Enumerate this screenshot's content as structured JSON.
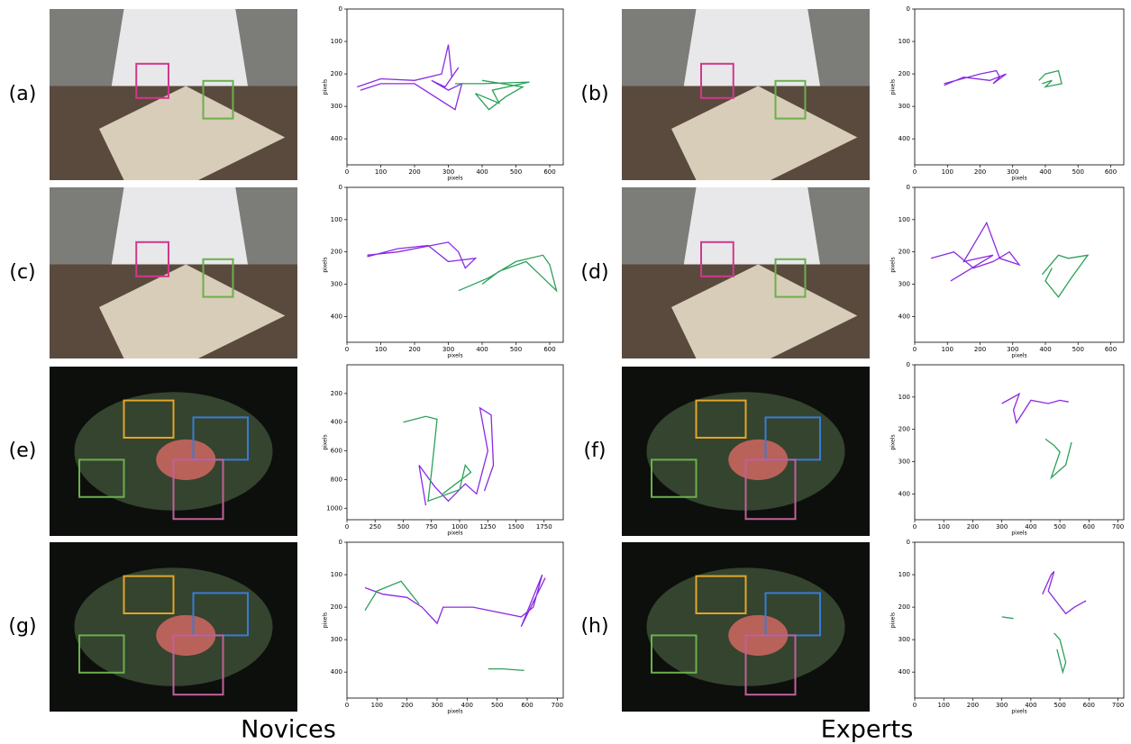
{
  "captions": {
    "left": "Novices",
    "right": "Experts"
  },
  "panels": [
    {
      "label": "(a)",
      "plot": {
        "type": "line",
        "xlabel": "pixels",
        "ylabel": "pixels",
        "xlim": [
          0,
          640
        ],
        "ylim": [
          480,
          0
        ],
        "xticks": [
          0,
          100,
          200,
          300,
          400,
          500,
          600
        ],
        "yticks": [
          0,
          100,
          200,
          300,
          400
        ],
        "series": [
          {
            "color": "#8a2be2",
            "x": [
              30,
              100,
              200,
              280,
              300,
              310,
              330,
              290,
              250,
              300,
              340,
              320,
              200,
              100,
              40
            ],
            "y": [
              240,
              215,
              220,
              200,
              110,
              210,
              180,
              240,
              220,
              250,
              230,
              310,
              230,
              230,
              250
            ]
          },
          {
            "color": "#2ca05a",
            "x": [
              320,
              400,
              540,
              430,
              450,
              380,
              420,
              470,
              520,
              400
            ],
            "y": [
              230,
              230,
              225,
              250,
              290,
              260,
              310,
              270,
              240,
              220
            ]
          }
        ]
      }
    },
    {
      "label": "(b)",
      "plot": {
        "type": "line",
        "xlabel": "pixels",
        "ylabel": "pixels",
        "xlim": [
          0,
          640
        ],
        "ylim": [
          480,
          0
        ],
        "xticks": [
          0,
          100,
          200,
          300,
          400,
          500,
          600
        ],
        "yticks": [
          0,
          100,
          200,
          300,
          400
        ],
        "series": [
          {
            "color": "#8a2be2",
            "x": [
              90,
              200,
              250,
              260,
              240,
              280,
              230,
              150,
              90
            ],
            "y": [
              230,
              200,
              190,
              210,
              230,
              200,
              220,
              210,
              235
            ]
          },
          {
            "color": "#2ca05a",
            "x": [
              380,
              400,
              440,
              450,
              400,
              420,
              390
            ],
            "y": [
              220,
              200,
              190,
              230,
              240,
              220,
              230
            ]
          }
        ]
      }
    },
    {
      "label": "(c)",
      "plot": {
        "type": "line",
        "xlabel": "pixels",
        "ylabel": "pixels",
        "xlim": [
          0,
          640
        ],
        "ylim": [
          480,
          0
        ],
        "xticks": [
          0,
          100,
          200,
          300,
          400,
          500,
          600
        ],
        "yticks": [
          0,
          100,
          200,
          300,
          400
        ],
        "series": [
          {
            "color": "#8a2be2",
            "x": [
              60,
              150,
              250,
              300,
              330,
              350,
              380,
              300,
              240,
              150,
              60
            ],
            "y": [
              210,
              200,
              180,
              170,
              200,
              250,
              220,
              230,
              180,
              190,
              215
            ]
          },
          {
            "color": "#2ca05a",
            "x": [
              330,
              420,
              500,
              580,
              600,
              620,
              580,
              530,
              450,
              400
            ],
            "y": [
              320,
              280,
              230,
              210,
              240,
              320,
              280,
              230,
              260,
              300
            ]
          }
        ]
      }
    },
    {
      "label": "(d)",
      "plot": {
        "type": "line",
        "xlabel": "pixels",
        "ylabel": "pixels",
        "xlim": [
          0,
          640
        ],
        "ylim": [
          480,
          0
        ],
        "xticks": [
          0,
          100,
          200,
          300,
          400,
          500,
          600
        ],
        "yticks": [
          0,
          100,
          200,
          300,
          400
        ],
        "series": [
          {
            "color": "#8a2be2",
            "x": [
              50,
              120,
              180,
              240,
              290,
              320,
              260,
              220,
              150,
              240,
              110
            ],
            "y": [
              220,
              200,
              250,
              230,
              200,
              240,
              220,
              110,
              230,
              210,
              290
            ]
          },
          {
            "color": "#2ca05a",
            "x": [
              390,
              440,
              470,
              530,
              480,
              440,
              400,
              420
            ],
            "y": [
              270,
              210,
              220,
              210,
              280,
              340,
              290,
              250
            ]
          }
        ]
      }
    },
    {
      "label": "(e)",
      "plot": {
        "type": "line",
        "xlabel": "pixels",
        "ylabel": "pixels",
        "xlim": [
          0,
          1920
        ],
        "ylim": [
          1080,
          0
        ],
        "xticks": [
          0,
          250,
          500,
          750,
          1000,
          1250,
          1500,
          1750
        ],
        "yticks": [
          200,
          400,
          600,
          800,
          1000
        ],
        "series": [
          {
            "color": "#8a2be2",
            "x": [
              700,
              640,
              780,
              900,
              1050,
              1150,
              1200,
              1250,
              1180,
              1280,
              1300,
              1220
            ],
            "y": [
              980,
              700,
              850,
              950,
              830,
              900,
              750,
              600,
              300,
              350,
              700,
              880
            ]
          },
          {
            "color": "#2ca05a",
            "x": [
              500,
              700,
              800,
              750,
              720,
              1000,
              1050,
              1100,
              850
            ],
            "y": [
              400,
              360,
              380,
              750,
              950,
              870,
              700,
              750,
              900
            ]
          }
        ]
      }
    },
    {
      "label": "(f)",
      "plot": {
        "type": "line",
        "xlabel": "pixels",
        "ylabel": "pixels",
        "xlim": [
          0,
          720
        ],
        "ylim": [
          480,
          0
        ],
        "xticks": [
          0,
          100,
          200,
          300,
          400,
          500,
          600,
          700
        ],
        "yticks": [
          0,
          100,
          200,
          300,
          400
        ],
        "series": [
          {
            "color": "#8a2be2",
            "x": [
              300,
              360,
              340,
              350,
              400,
              460,
              500,
              530
            ],
            "y": [
              120,
              90,
              140,
              180,
              110,
              120,
              110,
              115
            ]
          },
          {
            "color": "#2ca05a",
            "x": [
              450,
              480,
              500,
              470,
              520,
              540
            ],
            "y": [
              230,
              250,
              270,
              350,
              310,
              240
            ]
          }
        ]
      }
    },
    {
      "label": "(g)",
      "plot": {
        "type": "line",
        "xlabel": "pixels",
        "ylabel": "pixels",
        "xlim": [
          0,
          720
        ],
        "ylim": [
          480,
          0
        ],
        "xticks": [
          0,
          100,
          200,
          300,
          400,
          500,
          600,
          700
        ],
        "yticks": [
          0,
          100,
          200,
          300,
          400
        ],
        "series": [
          {
            "color": "#8a2be2",
            "x": [
              60,
              120,
              200,
              250,
              300,
              320,
              420,
              580,
              620,
              650,
              580,
              660
            ],
            "y": [
              140,
              160,
              170,
              200,
              250,
              200,
              200,
              230,
              200,
              100,
              260,
              110
            ]
          },
          {
            "color": "#2ca05a",
            "x": [
              60,
              100,
              180,
              240,
              null,
              470,
              520,
              590
            ],
            "y": [
              210,
              150,
              120,
              190,
              null,
              390,
              390,
              395
            ]
          }
        ]
      }
    },
    {
      "label": "(h)",
      "plot": {
        "type": "line",
        "xlabel": "pixels",
        "ylabel": "pixels",
        "xlim": [
          0,
          720
        ],
        "ylim": [
          480,
          0
        ],
        "xticks": [
          0,
          100,
          200,
          300,
          400,
          500,
          600,
          700
        ],
        "yticks": [
          0,
          100,
          200,
          300,
          400
        ],
        "series": [
          {
            "color": "#8a2be2",
            "x": [
              440,
              470,
              480,
              460,
              520,
              550,
              590
            ],
            "y": [
              160,
              100,
              90,
              150,
              220,
              200,
              180
            ]
          },
          {
            "color": "#2ca05a",
            "x": [
              300,
              340,
              null,
              480,
              500,
              520,
              510,
              490
            ],
            "y": [
              230,
              235,
              null,
              280,
              300,
              370,
              400,
              330
            ]
          }
        ]
      }
    }
  ]
}
